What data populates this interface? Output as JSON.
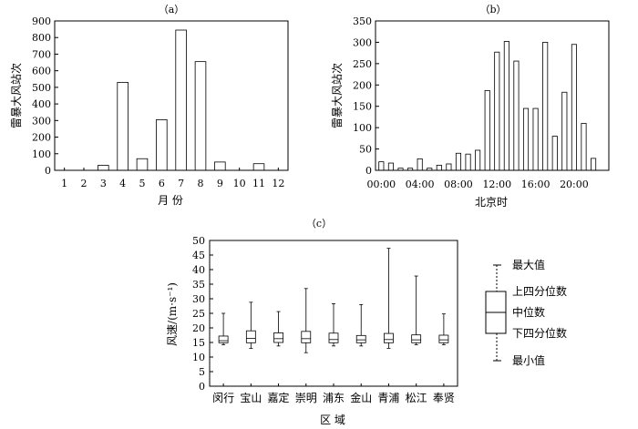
{
  "chart_data": [
    {
      "type": "bar",
      "title": "（a）",
      "xlabel": "月 份",
      "ylabel": "雷暴大风站次",
      "ylim": [
        0,
        900
      ],
      "yticks": [
        "0",
        "100",
        "200",
        "300",
        "400",
        "500",
        "600",
        "700",
        "800",
        "900"
      ],
      "categories": [
        "1",
        "2",
        "3",
        "4",
        "5",
        "6",
        "7",
        "8",
        "9",
        "10",
        "11",
        "12"
      ],
      "values": [
        0,
        0,
        30,
        530,
        70,
        305,
        845,
        655,
        50,
        0,
        40,
        0
      ],
      "grid": false
    },
    {
      "type": "bar",
      "title": "（b）",
      "xlabel": "北京时",
      "ylabel": "雷暴大风站次",
      "ylim": [
        0,
        350
      ],
      "yticks": [
        "0",
        "50",
        "100",
        "150",
        "200",
        "250",
        "300",
        "350"
      ],
      "xticks": [
        "00:00",
        "04:00",
        "08:00",
        "12:00",
        "16:00",
        "20:00"
      ],
      "xtick_hours": [
        0,
        4,
        8,
        12,
        16,
        20
      ],
      "hours": [
        0,
        1,
        2,
        3,
        4,
        5,
        6,
        7,
        8,
        9,
        10,
        11,
        12,
        13,
        14,
        15,
        16,
        17,
        18,
        19,
        20,
        21,
        22,
        23
      ],
      "values": [
        20,
        17,
        5,
        5,
        27,
        5,
        12,
        15,
        40,
        38,
        47,
        187,
        277,
        302,
        256,
        145,
        145,
        300,
        80,
        183,
        295,
        110,
        28,
        0
      ],
      "grid": false
    },
    {
      "type": "box",
      "title": "（c）",
      "xlabel": "区 域",
      "ylabel": "风速/(m·s⁻¹)",
      "ylim": [
        0,
        50
      ],
      "yticks": [
        "0",
        "5",
        "10",
        "15",
        "20",
        "25",
        "30",
        "35",
        "40",
        "45",
        "50"
      ],
      "categories": [
        "闵行",
        "宝山",
        "嘉定",
        "崇明",
        "浦东",
        "金山",
        "青浦",
        "松江",
        "奉贤"
      ],
      "boxes": [
        {
          "min": 14.2,
          "q1": 14.9,
          "median": 15.6,
          "q3": 17.2,
          "max": 25.0
        },
        {
          "min": 13.0,
          "q1": 14.9,
          "median": 16.4,
          "q3": 19.0,
          "max": 28.8
        },
        {
          "min": 13.8,
          "q1": 15.0,
          "median": 16.3,
          "q3": 18.3,
          "max": 25.6
        },
        {
          "min": 11.5,
          "q1": 14.9,
          "median": 16.3,
          "q3": 18.8,
          "max": 33.5
        },
        {
          "min": 13.8,
          "q1": 14.9,
          "median": 16.0,
          "q3": 18.2,
          "max": 28.3
        },
        {
          "min": 13.8,
          "q1": 14.9,
          "median": 15.9,
          "q3": 17.4,
          "max": 28.0
        },
        {
          "min": 13.0,
          "q1": 14.9,
          "median": 16.0,
          "q3": 18.1,
          "max": 47.3
        },
        {
          "min": 14.2,
          "q1": 14.9,
          "median": 15.9,
          "q3": 17.6,
          "max": 37.8
        },
        {
          "min": 14.2,
          "q1": 14.9,
          "median": 15.9,
          "q3": 17.5,
          "max": 24.8
        }
      ],
      "legend": {
        "max": "最大值",
        "q3": "上四分位数",
        "median": "中位数",
        "q1": "下四分位数",
        "min": "最小值"
      }
    }
  ]
}
